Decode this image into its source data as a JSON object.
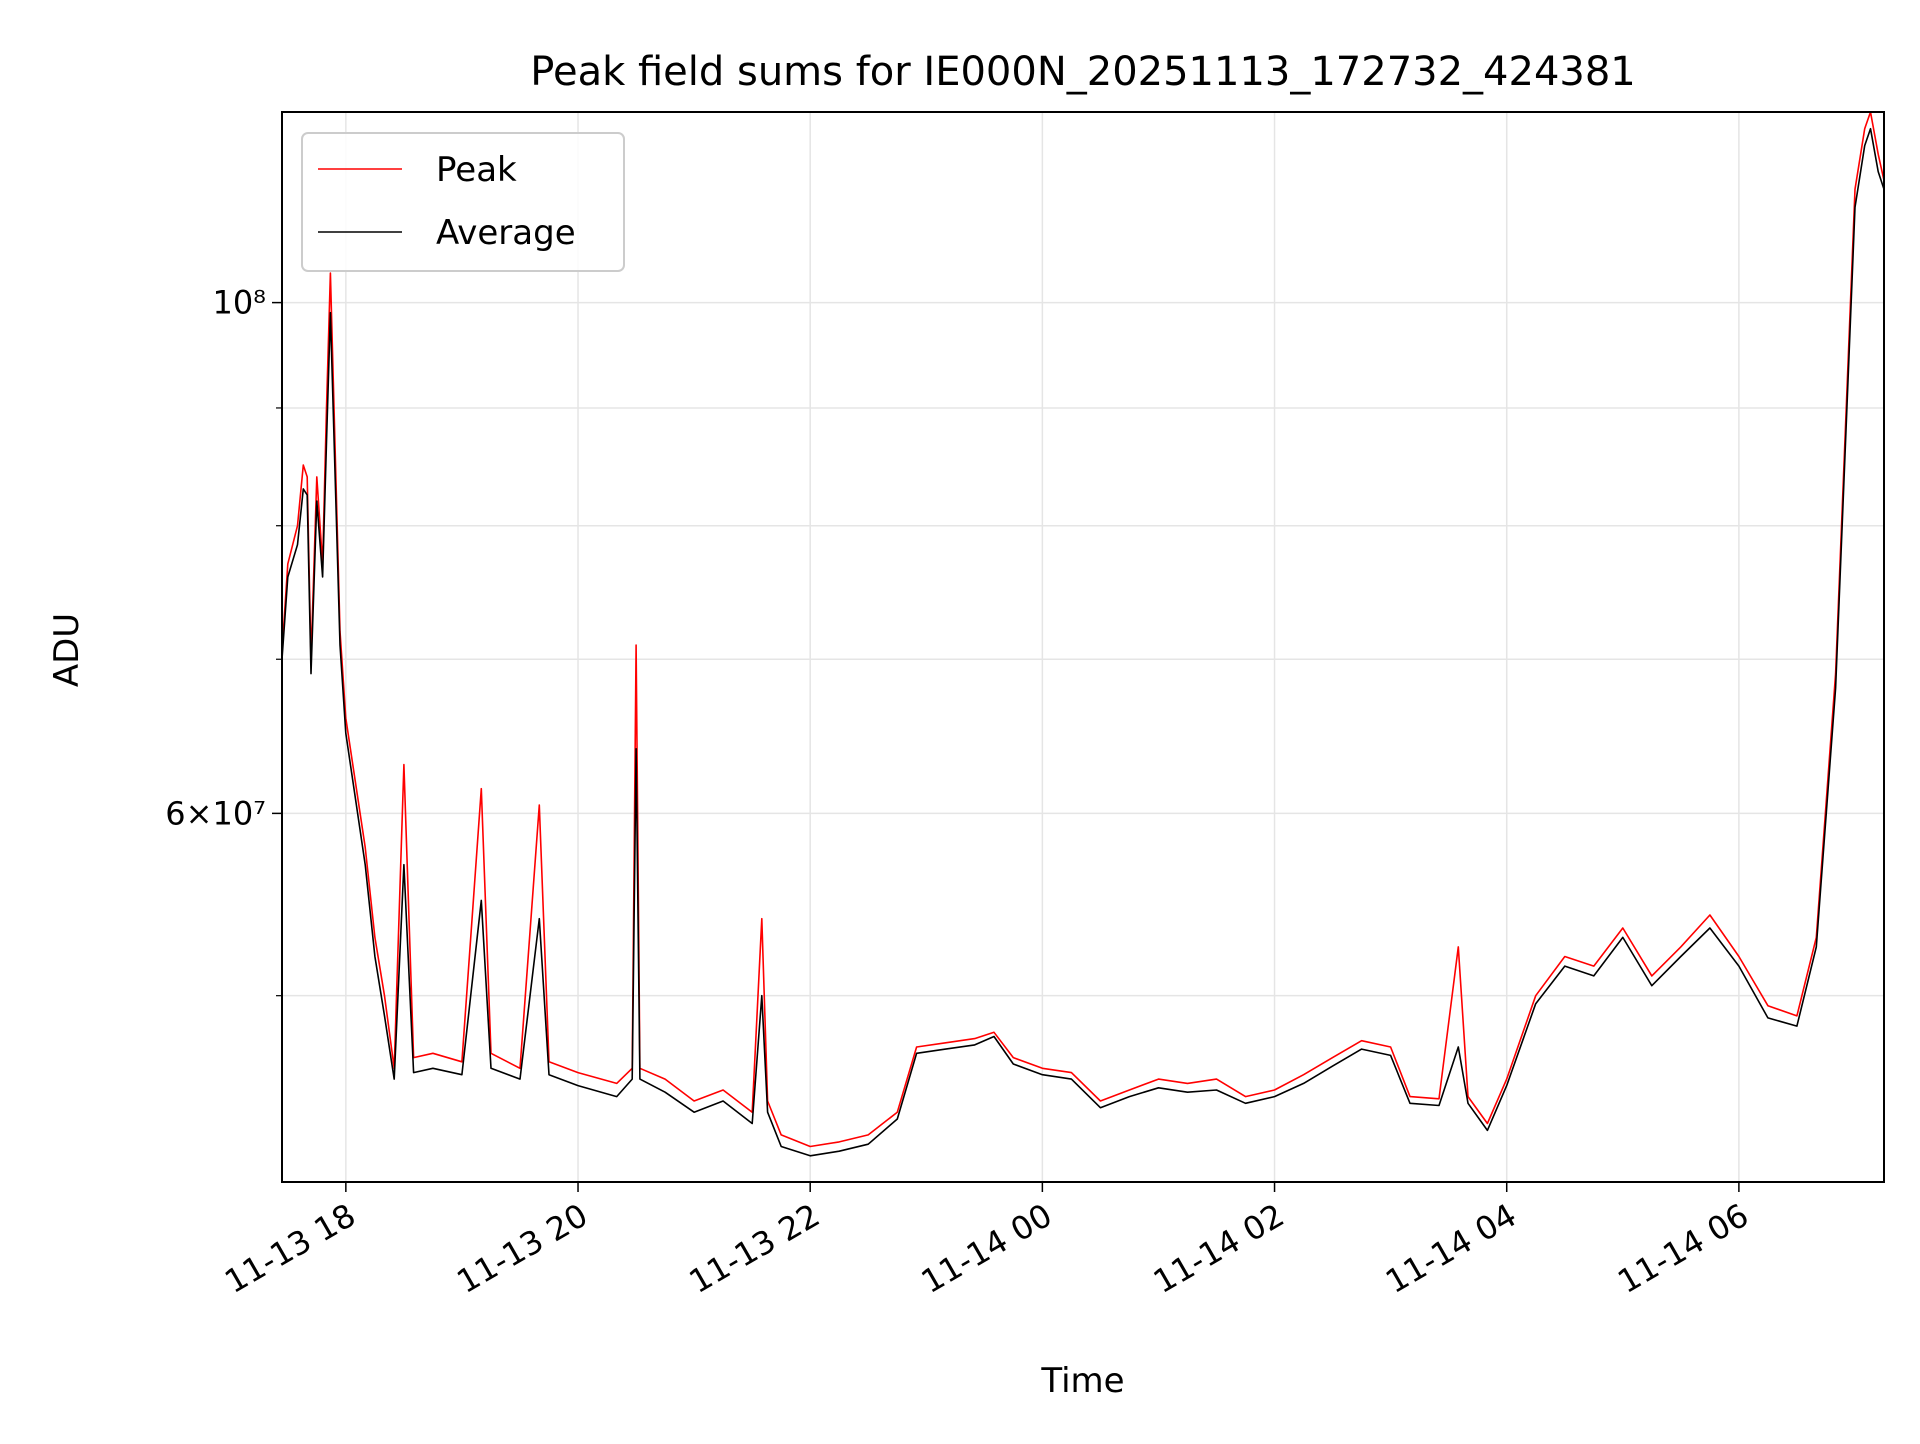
{
  "chart_data": {
    "type": "line",
    "title": "Peak field sums for IE000N_20251113_172732_424381",
    "xlabel": "Time",
    "ylabel": "ADU",
    "yscale": "log",
    "ylim": [
      41500000,
      121000000
    ],
    "xlim": [
      "2025-11-13 17:27",
      "2025-11-14 07:15"
    ],
    "x_ticks": [
      "11-13 18",
      "11-13 20",
      "11-13 22",
      "11-14 00",
      "11-14 02",
      "11-14 04",
      "11-14 06"
    ],
    "y_major_tick_labels": [
      "6×10⁷",
      "10⁸"
    ],
    "grid": true,
    "legend": {
      "position": "top-left",
      "entries": [
        "Peak",
        "Average"
      ]
    },
    "colors": {
      "Peak": "#ff0000",
      "Average": "#000000"
    },
    "series": [
      {
        "name": "Peak",
        "points": [
          [
            "2025-11-13 17:27",
            70500000
          ],
          [
            "2025-11-13 17:30",
            77000000
          ],
          [
            "2025-11-13 17:35",
            80000000
          ],
          [
            "2025-11-13 17:38",
            85000000
          ],
          [
            "2025-11-13 17:40",
            84000000
          ],
          [
            "2025-11-13 17:42",
            70000000
          ],
          [
            "2025-11-13 17:45",
            84000000
          ],
          [
            "2025-11-13 17:48",
            77000000
          ],
          [
            "2025-11-13 17:50",
            90000000
          ],
          [
            "2025-11-13 17:52",
            103000000
          ],
          [
            "2025-11-13 17:55",
            83000000
          ],
          [
            "2025-11-13 17:57",
            72000000
          ],
          [
            "2025-11-13 18:00",
            66000000
          ],
          [
            "2025-11-13 18:10",
            58000000
          ],
          [
            "2025-11-13 18:15",
            53000000
          ],
          [
            "2025-11-13 18:20",
            50000000
          ],
          [
            "2025-11-13 18:25",
            46500000
          ],
          [
            "2025-11-13 18:30",
            63000000
          ],
          [
            "2025-11-13 18:35",
            47000000
          ],
          [
            "2025-11-13 18:45",
            47200000
          ],
          [
            "2025-11-13 19:00",
            46800000
          ],
          [
            "2025-11-13 19:10",
            61500000
          ],
          [
            "2025-11-13 19:15",
            47200000
          ],
          [
            "2025-11-13 19:30",
            46500000
          ],
          [
            "2025-11-13 19:40",
            60500000
          ],
          [
            "2025-11-13 19:45",
            46800000
          ],
          [
            "2025-11-13 20:00",
            46300000
          ],
          [
            "2025-11-13 20:20",
            45800000
          ],
          [
            "2025-11-13 20:28",
            46500000
          ],
          [
            "2025-11-13 20:30",
            71000000
          ],
          [
            "2025-11-13 20:32",
            46500000
          ],
          [
            "2025-11-13 20:45",
            46000000
          ],
          [
            "2025-11-13 21:00",
            45000000
          ],
          [
            "2025-11-13 21:15",
            45500000
          ],
          [
            "2025-11-13 21:30",
            44500000
          ],
          [
            "2025-11-13 21:35",
            54000000
          ],
          [
            "2025-11-13 21:38",
            45000000
          ],
          [
            "2025-11-13 21:45",
            43500000
          ],
          [
            "2025-11-13 22:00",
            43000000
          ],
          [
            "2025-11-13 22:15",
            43200000
          ],
          [
            "2025-11-13 22:30",
            43500000
          ],
          [
            "2025-11-13 22:45",
            44500000
          ],
          [
            "2025-11-13 22:55",
            47500000
          ],
          [
            "2025-11-13 23:10",
            47700000
          ],
          [
            "2025-11-13 23:25",
            47900000
          ],
          [
            "2025-11-13 23:35",
            48200000
          ],
          [
            "2025-11-13 23:45",
            47000000
          ],
          [
            "2025-11-14 00:00",
            46500000
          ],
          [
            "2025-11-14 00:15",
            46300000
          ],
          [
            "2025-11-14 00:30",
            45000000
          ],
          [
            "2025-11-14 00:45",
            45500000
          ],
          [
            "2025-11-14 01:00",
            46000000
          ],
          [
            "2025-11-14 01:15",
            45800000
          ],
          [
            "2025-11-14 01:30",
            46000000
          ],
          [
            "2025-11-14 01:45",
            45200000
          ],
          [
            "2025-11-14 02:00",
            45500000
          ],
          [
            "2025-11-14 02:15",
            46200000
          ],
          [
            "2025-11-14 02:30",
            47000000
          ],
          [
            "2025-11-14 02:45",
            47800000
          ],
          [
            "2025-11-14 03:00",
            47500000
          ],
          [
            "2025-11-14 03:10",
            45200000
          ],
          [
            "2025-11-14 03:25",
            45100000
          ],
          [
            "2025-11-14 03:35",
            52500000
          ],
          [
            "2025-11-14 03:40",
            45200000
          ],
          [
            "2025-11-14 03:50",
            44000000
          ],
          [
            "2025-11-14 04:00",
            46000000
          ],
          [
            "2025-11-14 04:15",
            50000000
          ],
          [
            "2025-11-14 04:30",
            52000000
          ],
          [
            "2025-11-14 04:45",
            51500000
          ],
          [
            "2025-11-14 05:00",
            53500000
          ],
          [
            "2025-11-14 05:15",
            51000000
          ],
          [
            "2025-11-14 05:30",
            52500000
          ],
          [
            "2025-11-14 05:45",
            54200000
          ],
          [
            "2025-11-14 06:00",
            52000000
          ],
          [
            "2025-11-14 06:15",
            49500000
          ],
          [
            "2025-11-14 06:30",
            49000000
          ],
          [
            "2025-11-14 06:40",
            53000000
          ],
          [
            "2025-11-14 06:50",
            69000000
          ],
          [
            "2025-11-14 07:00",
            112000000
          ],
          [
            "2025-11-14 07:05",
            119000000
          ],
          [
            "2025-11-14 07:08",
            121000000
          ],
          [
            "2025-11-14 07:12",
            116000000
          ],
          [
            "2025-11-14 07:15",
            113000000
          ]
        ]
      },
      {
        "name": "Average",
        "points": [
          [
            "2025-11-13 17:27",
            70000000
          ],
          [
            "2025-11-13 17:30",
            76000000
          ],
          [
            "2025-11-13 17:35",
            78500000
          ],
          [
            "2025-11-13 17:38",
            83000000
          ],
          [
            "2025-11-13 17:40",
            82500000
          ],
          [
            "2025-11-13 17:42",
            69000000
          ],
          [
            "2025-11-13 17:45",
            82000000
          ],
          [
            "2025-11-13 17:48",
            76000000
          ],
          [
            "2025-11-13 17:50",
            87000000
          ],
          [
            "2025-11-13 17:52",
            99000000
          ],
          [
            "2025-11-13 17:55",
            81000000
          ],
          [
            "2025-11-13 17:57",
            71000000
          ],
          [
            "2025-11-13 18:00",
            65000000
          ],
          [
            "2025-11-13 18:10",
            57000000
          ],
          [
            "2025-11-13 18:15",
            52000000
          ],
          [
            "2025-11-13 18:20",
            49000000
          ],
          [
            "2025-11-13 18:25",
            46000000
          ],
          [
            "2025-11-13 18:30",
            57000000
          ],
          [
            "2025-11-13 18:35",
            46300000
          ],
          [
            "2025-11-13 18:45",
            46500000
          ],
          [
            "2025-11-13 19:00",
            46200000
          ],
          [
            "2025-11-13 19:10",
            55000000
          ],
          [
            "2025-11-13 19:15",
            46500000
          ],
          [
            "2025-11-13 19:30",
            46000000
          ],
          [
            "2025-11-13 19:40",
            54000000
          ],
          [
            "2025-11-13 19:45",
            46200000
          ],
          [
            "2025-11-13 20:00",
            45700000
          ],
          [
            "2025-11-13 20:20",
            45200000
          ],
          [
            "2025-11-13 20:28",
            46000000
          ],
          [
            "2025-11-13 20:30",
            64000000
          ],
          [
            "2025-11-13 20:32",
            46000000
          ],
          [
            "2025-11-13 20:45",
            45400000
          ],
          [
            "2025-11-13 21:00",
            44500000
          ],
          [
            "2025-11-13 21:15",
            45000000
          ],
          [
            "2025-11-13 21:30",
            44000000
          ],
          [
            "2025-11-13 21:35",
            50000000
          ],
          [
            "2025-11-13 21:38",
            44500000
          ],
          [
            "2025-11-13 21:45",
            43000000
          ],
          [
            "2025-11-13 22:00",
            42600000
          ],
          [
            "2025-11-13 22:15",
            42800000
          ],
          [
            "2025-11-13 22:30",
            43100000
          ],
          [
            "2025-11-13 22:45",
            44200000
          ],
          [
            "2025-11-13 22:55",
            47200000
          ],
          [
            "2025-11-13 23:10",
            47400000
          ],
          [
            "2025-11-13 23:25",
            47600000
          ],
          [
            "2025-11-13 23:35",
            48000000
          ],
          [
            "2025-11-13 23:45",
            46700000
          ],
          [
            "2025-11-14 00:00",
            46200000
          ],
          [
            "2025-11-14 00:15",
            46000000
          ],
          [
            "2025-11-14 00:30",
            44700000
          ],
          [
            "2025-11-14 00:45",
            45200000
          ],
          [
            "2025-11-14 01:00",
            45600000
          ],
          [
            "2025-11-14 01:15",
            45400000
          ],
          [
            "2025-11-14 01:30",
            45500000
          ],
          [
            "2025-11-14 01:45",
            44900000
          ],
          [
            "2025-11-14 02:00",
            45200000
          ],
          [
            "2025-11-14 02:15",
            45800000
          ],
          [
            "2025-11-14 02:30",
            46600000
          ],
          [
            "2025-11-14 02:45",
            47400000
          ],
          [
            "2025-11-14 03:00",
            47100000
          ],
          [
            "2025-11-14 03:10",
            44900000
          ],
          [
            "2025-11-14 03:25",
            44800000
          ],
          [
            "2025-11-14 03:35",
            47500000
          ],
          [
            "2025-11-14 03:40",
            44900000
          ],
          [
            "2025-11-14 03:50",
            43700000
          ],
          [
            "2025-11-14 04:00",
            45700000
          ],
          [
            "2025-11-14 04:15",
            49600000
          ],
          [
            "2025-11-14 04:30",
            51500000
          ],
          [
            "2025-11-14 04:45",
            51000000
          ],
          [
            "2025-11-14 05:00",
            53000000
          ],
          [
            "2025-11-14 05:15",
            50500000
          ],
          [
            "2025-11-14 05:30",
            52000000
          ],
          [
            "2025-11-14 05:45",
            53500000
          ],
          [
            "2025-11-14 06:00",
            51500000
          ],
          [
            "2025-11-14 06:15",
            48900000
          ],
          [
            "2025-11-14 06:30",
            48500000
          ],
          [
            "2025-11-14 06:40",
            52500000
          ],
          [
            "2025-11-14 06:50",
            68000000
          ],
          [
            "2025-11-14 07:00",
            110000000
          ],
          [
            "2025-11-14 07:05",
            117000000
          ],
          [
            "2025-11-14 07:08",
            119000000
          ],
          [
            "2025-11-14 07:12",
            114000000
          ],
          [
            "2025-11-14 07:15",
            112000000
          ]
        ]
      }
    ]
  }
}
